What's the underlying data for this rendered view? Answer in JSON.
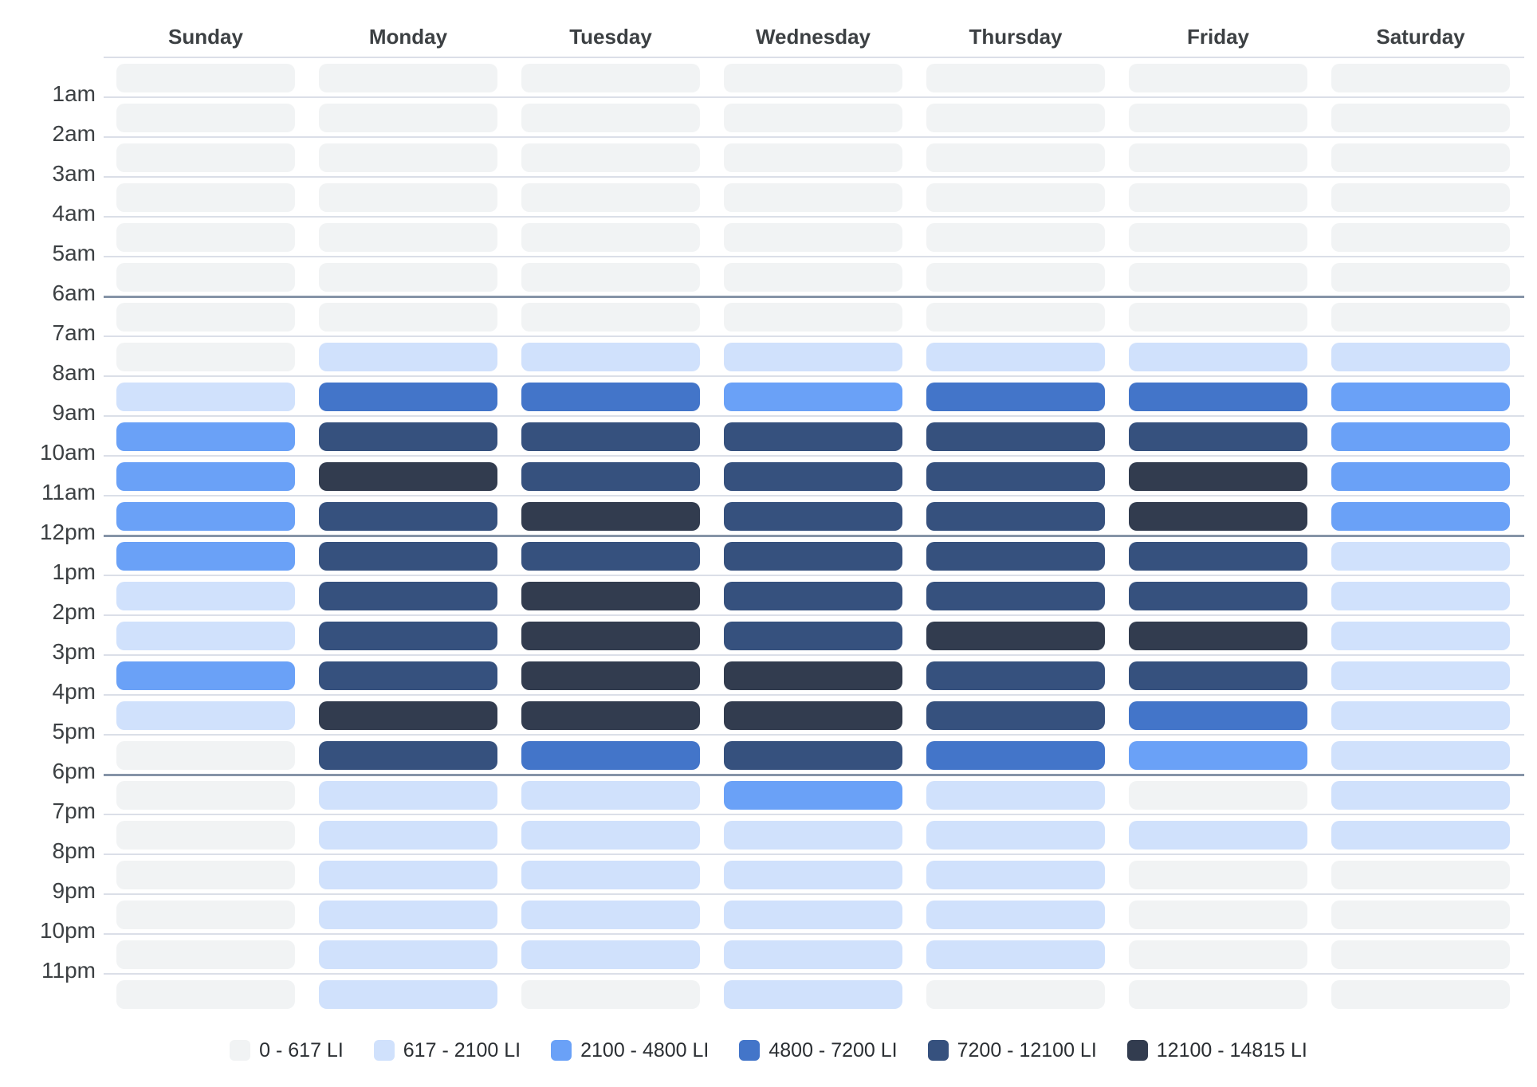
{
  "chart_data": {
    "type": "heatmap",
    "title": "",
    "columns": [
      "Sunday",
      "Monday",
      "Tuesday",
      "Wednesday",
      "Thursday",
      "Friday",
      "Saturday"
    ],
    "hour_labels": [
      "1am",
      "2am",
      "3am",
      "4am",
      "5am",
      "6am",
      "7am",
      "8am",
      "9am",
      "10am",
      "11am",
      "12pm",
      "1pm",
      "2pm",
      "3pm",
      "4pm",
      "5pm",
      "6pm",
      "7pm",
      "8pm",
      "9pm",
      "10pm",
      "11pm"
    ],
    "major_line_indices": [
      6,
      12,
      18
    ],
    "legend_position": "bottom-center",
    "levels": [
      {
        "label": "0 - 617 LI",
        "color": "#f1f3f4"
      },
      {
        "label": "617 - 2100 LI",
        "color": "#d0e1fc"
      },
      {
        "label": "2100 - 4800 LI",
        "color": "#6aa1f7"
      },
      {
        "label": "4800 - 7200 LI",
        "color": "#4375c9"
      },
      {
        "label": "7200 - 12100 LI",
        "color": "#36517e"
      },
      {
        "label": "12100 - 14815 LI",
        "color": "#323c4f"
      }
    ],
    "matrix": [
      [
        0,
        0,
        0,
        0,
        0,
        0,
        0
      ],
      [
        0,
        0,
        0,
        0,
        0,
        0,
        0
      ],
      [
        0,
        0,
        0,
        0,
        0,
        0,
        0
      ],
      [
        0,
        0,
        0,
        0,
        0,
        0,
        0
      ],
      [
        0,
        0,
        0,
        0,
        0,
        0,
        0
      ],
      [
        0,
        0,
        0,
        0,
        0,
        0,
        0
      ],
      [
        0,
        0,
        0,
        0,
        0,
        0,
        0
      ],
      [
        0,
        1,
        1,
        1,
        1,
        1,
        1
      ],
      [
        1,
        3,
        3,
        2,
        3,
        3,
        2
      ],
      [
        2,
        4,
        4,
        4,
        4,
        4,
        2
      ],
      [
        2,
        5,
        4,
        4,
        4,
        5,
        2
      ],
      [
        2,
        4,
        5,
        4,
        4,
        5,
        2
      ],
      [
        2,
        4,
        4,
        4,
        4,
        4,
        1
      ],
      [
        1,
        4,
        5,
        4,
        4,
        4,
        1
      ],
      [
        1,
        4,
        5,
        4,
        5,
        5,
        1
      ],
      [
        2,
        4,
        5,
        5,
        4,
        4,
        1
      ],
      [
        1,
        5,
        5,
        5,
        4,
        3,
        1
      ],
      [
        0,
        4,
        3,
        4,
        3,
        2,
        1
      ],
      [
        0,
        1,
        1,
        2,
        1,
        0,
        1
      ],
      [
        0,
        1,
        1,
        1,
        1,
        1,
        1
      ],
      [
        0,
        1,
        1,
        1,
        1,
        0,
        0
      ],
      [
        0,
        1,
        1,
        1,
        1,
        0,
        0
      ],
      [
        0,
        1,
        1,
        1,
        1,
        0,
        0
      ],
      [
        0,
        1,
        0,
        1,
        0,
        0,
        0
      ]
    ]
  },
  "colors": {
    "background": "#ffffff",
    "grid_line": "#dbdfe8",
    "major_grid_line": "#8694a7",
    "header_text": "#3c4043",
    "label_text": "#3c4043",
    "legend_text": "#2b2f33"
  }
}
